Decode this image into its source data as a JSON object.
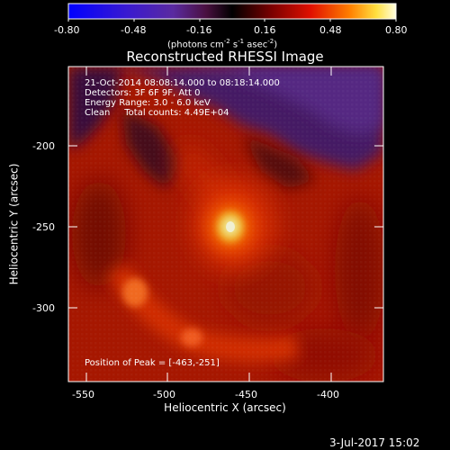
{
  "colorbar": {
    "ticks": [
      "-0.80",
      "-0.48",
      "-0.16",
      "0.16",
      "0.48",
      "0.80"
    ],
    "units_main": "(photons cm",
    "units_exp1": "-2",
    "units_mid": " s",
    "units_exp2": "-1",
    "units_mid2": " asec",
    "units_exp3": "-2",
    "units_end": ")"
  },
  "title": "Reconstructed RHESSI Image",
  "info": {
    "line1": "21-Oct-2014 08:08:14.000 to 08:18:14.000",
    "line2": "Detectors: 3F 6F 9F, Att 0",
    "line3": "Energy Range: 3.0 - 6.0 keV",
    "line4": "Clean     Total counts: 4.49E+04"
  },
  "peak_label": "Position of Peak = [-463,-251]",
  "axes": {
    "xlabel": "Heliocentric X (arcsec)",
    "ylabel": "Heliocentric Y (arcsec)",
    "xticks": [
      "-550",
      "-500",
      "-450",
      "-400"
    ],
    "yticks": [
      "-200",
      "-250",
      "-300"
    ]
  },
  "date_stamp": "3-Jul-2017 15:02",
  "chart_data": {
    "type": "heatmap",
    "title": "Reconstructed RHESSI Image",
    "xlabel": "Heliocentric X (arcsec)",
    "ylabel": "Heliocentric Y (arcsec)",
    "xlim": [
      -563,
      -370
    ],
    "ylim": [
      -345,
      -168
    ],
    "xticks": [
      -550,
      -500,
      -450,
      -400
    ],
    "yticks": [
      -200,
      -250,
      -300
    ],
    "colorbar_range": [
      -0.8,
      0.8
    ],
    "colormap": "red-temperature",
    "peak_position": [
      -463,
      -251
    ],
    "features": [
      {
        "name": "main peak",
        "x": -463,
        "y": -251,
        "intensity": 0.8
      },
      {
        "name": "secondary source",
        "x": -522,
        "y": -288,
        "intensity": 0.45
      },
      {
        "name": "tertiary source",
        "x": -486,
        "y": -317,
        "intensity": 0.35
      }
    ]
  }
}
